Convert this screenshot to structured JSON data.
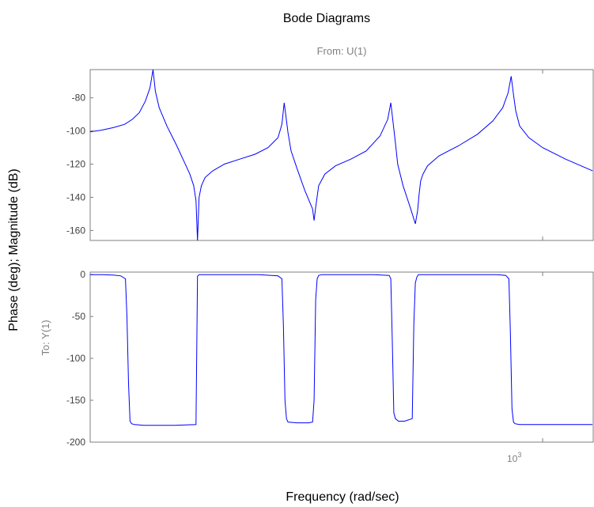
{
  "chart_data": {
    "type": "line",
    "title": "Bode Diagrams",
    "input_label": "From: U(1)",
    "output_label": "To: Y(1)",
    "xlabel": "Frequency (rad/sec)",
    "ylabel": "Phase (deg); Magnitude (dB)",
    "xscale": "log",
    "x_tick_label": {
      "base": "10",
      "exponent": "3",
      "value": 1000
    },
    "grid": false,
    "line_color": "#0000ff",
    "panels": [
      {
        "name": "magnitude",
        "ylim": [
          -166,
          -63
        ],
        "yticks": [
          {
            "value": -80,
            "label": "-80"
          },
          {
            "value": -100,
            "label": "-100"
          },
          {
            "value": -120,
            "label": "-120"
          },
          {
            "value": -140,
            "label": "-140"
          },
          {
            "value": -160,
            "label": "-160"
          }
        ],
        "x": [
          60,
          75,
          90,
          105,
          115,
          124,
          132,
          138,
          142,
          145,
          150,
          160,
          172,
          182,
          190,
          195,
          198,
          200,
          202,
          205,
          210,
          220,
          235,
          255,
          275,
          292,
          305,
          310,
          313,
          315,
          318,
          322,
          330,
          340,
          350,
          352,
          354,
          358,
          366,
          380,
          400,
          420,
          438,
          448,
          452,
          455,
          458,
          461,
          468,
          478,
          484,
          487,
          489,
          491,
          494,
          500,
          515,
          540,
          565,
          585,
          598,
          605,
          609,
          612,
          615,
          620,
          632,
          650,
          680,
          715
        ],
        "y": [
          -100.5,
          -99.5,
          -98,
          -96,
          -93,
          -89,
          -82,
          -74,
          -63,
          -76,
          -86,
          -97,
          -108,
          -118,
          -126,
          -133,
          -142,
          -166,
          -140,
          -133,
          -128,
          -124,
          -120,
          -117,
          -114,
          -110,
          -104,
          -96,
          -83,
          -90,
          -101,
          -112,
          -123,
          -136,
          -147,
          -154,
          -146,
          -133,
          -126,
          -121,
          -117,
          -112,
          -103,
          -93,
          -83,
          -95,
          -107,
          -120,
          -133,
          -147,
          -156,
          -148,
          -138,
          -130,
          -126,
          -121,
          -115,
          -109,
          -102,
          -94,
          -86,
          -77,
          -67,
          -78,
          -88,
          -97,
          -104,
          -110,
          -117,
          -124
        ]
      },
      {
        "name": "phase",
        "ylim": [
          -200,
          3
        ],
        "yticks": [
          {
            "value": 0,
            "label": "0"
          },
          {
            "value": -50,
            "label": "-50"
          },
          {
            "value": -100,
            "label": "-100"
          },
          {
            "value": -150,
            "label": "-150"
          },
          {
            "value": -200,
            "label": "-200"
          }
        ],
        "x": [
          60,
          75,
          90,
          100,
          106,
          108,
          110,
          112,
          114,
          118,
          130,
          150,
          170,
          198,
          200,
          202,
          210,
          240,
          280,
          305,
          310,
          312,
          314,
          316,
          318,
          330,
          345,
          350,
          352,
          354,
          356,
          358,
          362,
          390,
          430,
          450,
          452,
          454,
          456,
          458,
          462,
          470,
          480,
          482,
          484,
          486,
          488,
          492,
          520,
          560,
          590,
          602,
          606,
          608,
          610,
          612,
          614,
          620,
          660,
          715
        ],
        "y": [
          0,
          0,
          -0.5,
          -1.5,
          -5,
          -50,
          -130,
          -175,
          -178,
          -179,
          -180,
          -180,
          -180,
          -179,
          -2,
          0,
          0,
          0,
          0,
          -1.5,
          -5,
          -60,
          -150,
          -172,
          -176,
          -177,
          -177,
          -176,
          -150,
          -30,
          -5,
          -1,
          0,
          0,
          0,
          -1,
          -5,
          -80,
          -165,
          -172,
          -175,
          -175,
          -172,
          -60,
          -10,
          -3,
          0,
          0,
          0,
          0,
          0,
          -1,
          -5,
          -70,
          -160,
          -176,
          -178,
          -179,
          -179,
          -179
        ]
      }
    ]
  }
}
